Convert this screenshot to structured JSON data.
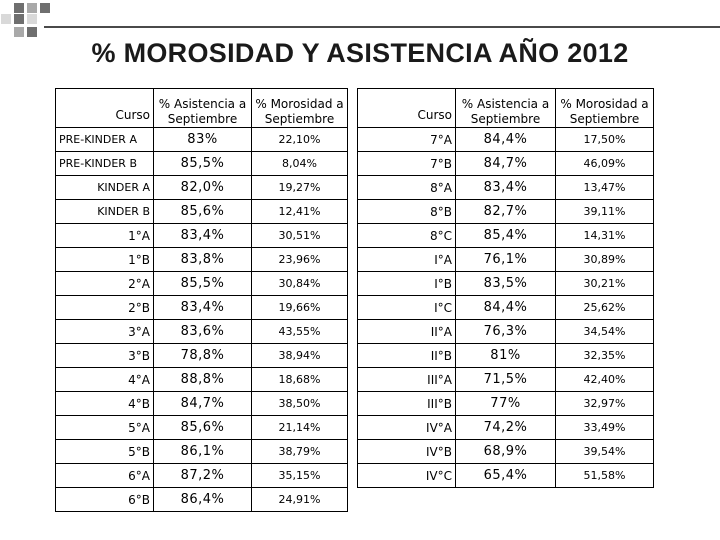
{
  "title": "% MOROSIDAD Y ASISTENCIA AÑO 2012",
  "headers": {
    "curso": "Curso",
    "asistencia_l1": "% Asistencia a",
    "asistencia_l2": "Septiembre",
    "morosidad_l1": "% Morosidad a",
    "morosidad_l2": "Septiembre"
  },
  "left_rows": [
    {
      "curso": "PRE-KINDER A",
      "asistencia": "83%",
      "morosidad": "22,10%"
    },
    {
      "curso": "PRE-KINDER B",
      "asistencia": "85,5%",
      "morosidad": "8,04%"
    },
    {
      "curso": "KINDER A",
      "asistencia": "82,0%",
      "morosidad": "19,27%"
    },
    {
      "curso": "KINDER B",
      "asistencia": "85,6%",
      "morosidad": "12,41%"
    },
    {
      "curso": "1°A",
      "asistencia": "83,4%",
      "morosidad": "30,51%"
    },
    {
      "curso": "1°B",
      "asistencia": "83,8%",
      "morosidad": "23,96%"
    },
    {
      "curso": "2°A",
      "asistencia": "85,5%",
      "morosidad": "30,84%"
    },
    {
      "curso": "2°B",
      "asistencia": "83,4%",
      "morosidad": "19,66%"
    },
    {
      "curso": "3°A",
      "asistencia": "83,6%",
      "morosidad": "43,55%"
    },
    {
      "curso": "3°B",
      "asistencia": "78,8%",
      "morosidad": "38,94%"
    },
    {
      "curso": "4°A",
      "asistencia": "88,8%",
      "morosidad": "18,68%"
    },
    {
      "curso": "4°B",
      "asistencia": "84,7%",
      "morosidad": "38,50%"
    },
    {
      "curso": "5°A",
      "asistencia": "85,6%",
      "morosidad": "21,14%"
    },
    {
      "curso": "5°B",
      "asistencia": "86,1%",
      "morosidad": "38,79%"
    },
    {
      "curso": "6°A",
      "asistencia": "87,2%",
      "morosidad": "35,15%"
    },
    {
      "curso": "6°B",
      "asistencia": "86,4%",
      "morosidad": "24,91%"
    }
  ],
  "right_rows": [
    {
      "curso": "7°A",
      "asistencia": "84,4%",
      "morosidad": "17,50%"
    },
    {
      "curso": "7°B",
      "asistencia": "84,7%",
      "morosidad": "46,09%"
    },
    {
      "curso": "8°A",
      "asistencia": "83,4%",
      "morosidad": "13,47%"
    },
    {
      "curso": "8°B",
      "asistencia": "82,7%",
      "morosidad": "39,11%"
    },
    {
      "curso": "8°C",
      "asistencia": "85,4%",
      "morosidad": "14,31%"
    },
    {
      "curso": "I°A",
      "asistencia": "76,1%",
      "morosidad": "30,89%"
    },
    {
      "curso": "I°B",
      "asistencia": "83,5%",
      "morosidad": "30,21%"
    },
    {
      "curso": "I°C",
      "asistencia": "84,4%",
      "morosidad": "25,62%"
    },
    {
      "curso": "II°A",
      "asistencia": "76,3%",
      "morosidad": "34,54%"
    },
    {
      "curso": "II°B",
      "asistencia": "81%",
      "morosidad": "32,35%"
    },
    {
      "curso": "III°A",
      "asistencia": "71,5%",
      "morosidad": "42,40%"
    },
    {
      "curso": "III°B",
      "asistencia": "77%",
      "morosidad": "32,97%"
    },
    {
      "curso": "IV°A",
      "asistencia": "74,2%",
      "morosidad": "33,49%"
    },
    {
      "curso": "IV°B",
      "asistencia": "68,9%",
      "morosidad": "39,54%"
    },
    {
      "curso": "IV°C",
      "asistencia": "65,4%",
      "morosidad": "51,58%"
    }
  ],
  "colors": {
    "corner_dark": "#6f6f6f",
    "corner_mid": "#a9a9a9",
    "corner_light": "#d9d9d9",
    "rule": "#4a4a4a"
  }
}
